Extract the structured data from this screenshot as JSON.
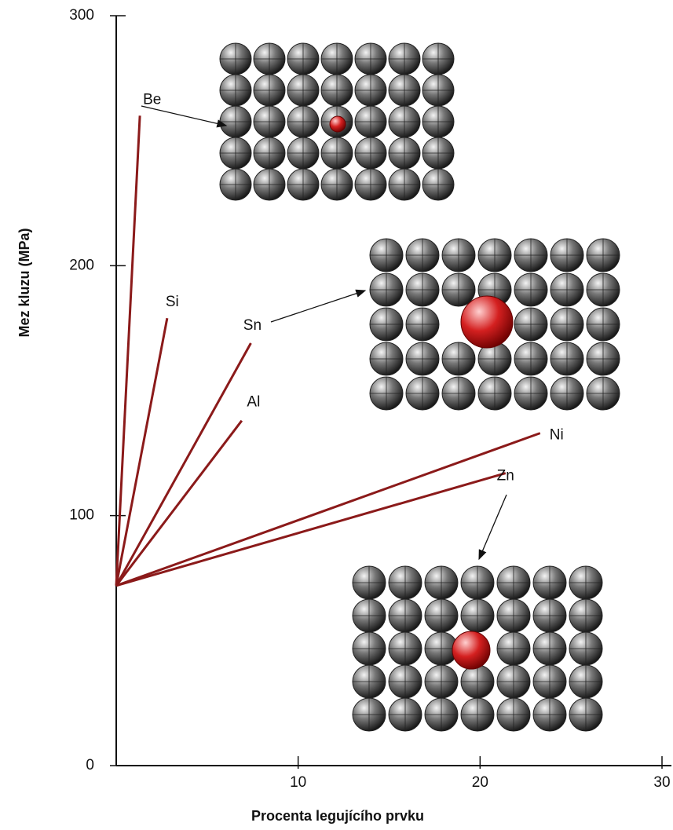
{
  "chart_data": {
    "type": "line",
    "x_label": "Procenta legujícího prvku",
    "y_label": "Mez kluzu (MPa)",
    "xlim": [
      0,
      30
    ],
    "xticks": [
      10,
      20,
      30
    ],
    "ylim": [
      0,
      300
    ],
    "yticks": [
      0,
      100,
      200,
      300
    ],
    "series": [
      {
        "name": "Be",
        "color": "#8b1a1a",
        "x": [
          0,
          1.3
        ],
        "values": [
          72,
          260
        ]
      },
      {
        "name": "Si",
        "color": "#8b1a1a",
        "x": [
          0,
          2.8
        ],
        "values": [
          72,
          179
        ]
      },
      {
        "name": "Sn",
        "color": "#8b1a1a",
        "x": [
          0,
          7.4
        ],
        "values": [
          72,
          169
        ]
      },
      {
        "name": "Al",
        "color": "#8b1a1a",
        "x": [
          0,
          6.9
        ],
        "values": [
          72,
          138
        ]
      },
      {
        "name": "Ni",
        "color": "#8b1a1a",
        "x": [
          0,
          23.3
        ],
        "values": [
          72,
          133
        ]
      },
      {
        "name": "Zn",
        "color": "#8b1a1a",
        "x": [
          0,
          21.4
        ],
        "values": [
          72,
          117
        ]
      }
    ]
  }
}
